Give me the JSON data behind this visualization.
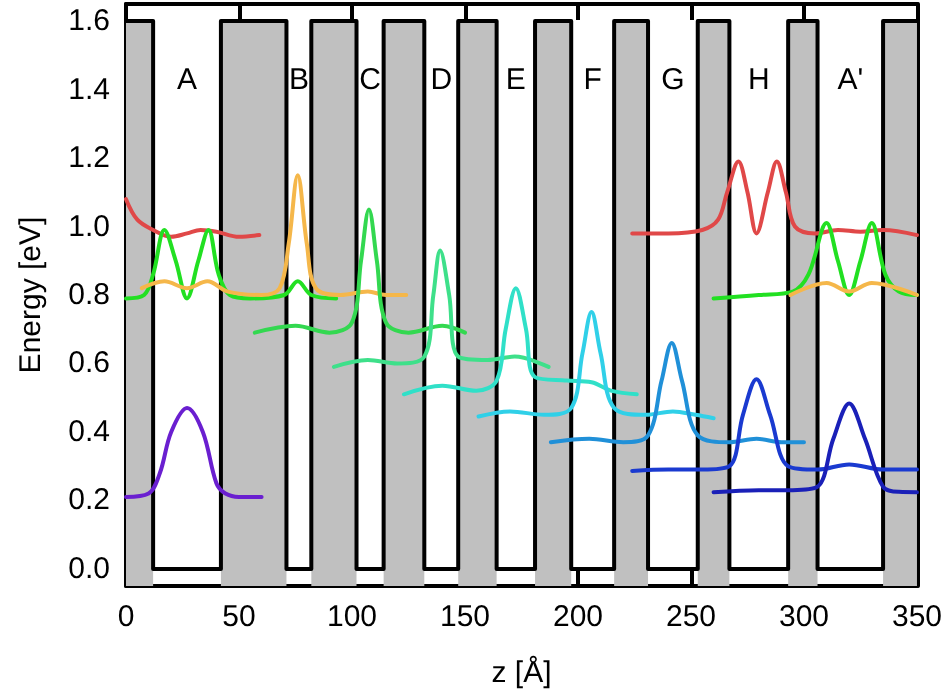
{
  "chart_data": {
    "type": "line",
    "xlabel": "z [Å]",
    "ylabel": "Energy [eV]",
    "xlim": [
      0,
      350
    ],
    "xticks": [
      0,
      50,
      100,
      150,
      200,
      250,
      300,
      350
    ],
    "ylim": [
      -0.05,
      1.65
    ],
    "yticks": [
      {
        "value": 0,
        "label": "0.0"
      },
      0.2,
      0.4,
      0.6,
      0.8,
      {
        "value": 1,
        "label": "1.0"
      },
      1.2,
      1.4,
      1.6
    ],
    "grid": false,
    "marker": "none",
    "line_style": "solid",
    "bands": [
      {
        "axis": "x",
        "from": 0,
        "to": 12,
        "color": "#c0c0c0"
      },
      {
        "axis": "x",
        "from": 42,
        "to": 71,
        "color": "#c0c0c0"
      },
      {
        "axis": "x",
        "from": 82,
        "to": 102,
        "color": "#c0c0c0"
      },
      {
        "axis": "x",
        "from": 114,
        "to": 132,
        "color": "#c0c0c0"
      },
      {
        "axis": "x",
        "from": 147,
        "to": 164,
        "color": "#c0c0c0"
      },
      {
        "axis": "x",
        "from": 181,
        "to": 197,
        "color": "#c0c0c0"
      },
      {
        "axis": "x",
        "from": 216,
        "to": 231,
        "color": "#c0c0c0"
      },
      {
        "axis": "x",
        "from": 253,
        "to": 267,
        "color": "#c0c0c0"
      },
      {
        "axis": "x",
        "from": 293,
        "to": 306,
        "color": "#c0c0c0"
      },
      {
        "axis": "x",
        "from": 335,
        "to": 350,
        "color": "#c0c0c0"
      }
    ],
    "annotations": [
      "A",
      "B",
      "C",
      "D",
      "E",
      "F",
      "G",
      "H",
      "A'"
    ],
    "series": [
      {
        "color": "#000000",
        "x": [
          0,
          12,
          12,
          42,
          42,
          71,
          71,
          82,
          82,
          102,
          102,
          114,
          114,
          132,
          132,
          147,
          147,
          164,
          164,
          181,
          181,
          197,
          197,
          216,
          216,
          231,
          231,
          253,
          253,
          267,
          267,
          293,
          293,
          306,
          306,
          335,
          335,
          350
        ],
        "values": [
          1.6,
          1.6,
          0,
          0,
          1.6,
          1.6,
          0,
          0,
          1.6,
          1.6,
          0,
          0,
          1.6,
          1.6,
          0,
          0,
          1.6,
          1.6,
          0,
          0,
          1.6,
          1.6,
          0,
          0,
          1.6,
          1.6,
          0,
          0,
          1.6,
          1.6,
          0,
          0,
          1.6,
          1.6,
          0,
          0,
          1.6,
          1.6
        ]
      },
      {
        "color": "#6a1fd0",
        "x": [
          0,
          10,
          15,
          20,
          27,
          34,
          40,
          44,
          50,
          60
        ],
        "values": [
          0.21,
          0.22,
          0.28,
          0.4,
          0.47,
          0.4,
          0.25,
          0.22,
          0.21,
          0.21
        ]
      },
      {
        "color": "#e04848",
        "x": [
          0,
          5,
          12,
          20,
          27,
          33,
          40,
          50,
          59
        ],
        "values": [
          1.08,
          1.02,
          0.99,
          0.97,
          0.98,
          0.99,
          0.985,
          0.97,
          0.975
        ]
      },
      {
        "color": "#e04848",
        "x": [
          224,
          240,
          255,
          262,
          266,
          271,
          275,
          279,
          284,
          288,
          292,
          296,
          305,
          315,
          325,
          335,
          350
        ],
        "values": [
          0.98,
          0.98,
          0.99,
          1.02,
          1.1,
          1.19,
          1.1,
          0.98,
          1.1,
          1.19,
          1.1,
          1,
          0.98,
          0.99,
          0.985,
          0.99,
          0.975
        ]
      },
      {
        "color": "#22e022",
        "x": [
          0,
          8,
          12,
          17,
          22,
          27,
          32,
          36.5,
          41,
          46,
          55,
          70,
          76,
          82,
          93
        ],
        "values": [
          0.79,
          0.8,
          0.86,
          0.99,
          0.9,
          0.79,
          0.9,
          0.99,
          0.86,
          0.8,
          0.79,
          0.8,
          0.84,
          0.8,
          0.79
        ]
      },
      {
        "color": "#22e022",
        "x": [
          260,
          280,
          295,
          302,
          310,
          315,
          320,
          325,
          330,
          336,
          342,
          350
        ],
        "values": [
          0.79,
          0.8,
          0.81,
          0.86,
          1.01,
          0.9,
          0.8,
          0.9,
          1.01,
          0.86,
          0.81,
          0.8
        ]
      },
      {
        "color": "#f5b74a",
        "x": [
          7,
          17,
          27,
          36,
          45,
          60,
          68,
          72,
          76,
          80,
          84,
          95,
          107,
          115,
          124
        ],
        "values": [
          0.82,
          0.84,
          0.82,
          0.84,
          0.81,
          0.8,
          0.82,
          0.95,
          1.15,
          0.95,
          0.82,
          0.8,
          0.81,
          0.8,
          0.8
        ]
      },
      {
        "color": "#f5b74a",
        "x": [
          294,
          310,
          320,
          330,
          350
        ],
        "values": [
          0.8,
          0.835,
          0.81,
          0.835,
          0.8
        ]
      },
      {
        "color": "#33d850",
        "x": [
          57,
          75,
          90,
          100,
          104,
          107.5,
          111,
          115,
          125,
          140,
          150
        ],
        "values": [
          0.69,
          0.71,
          0.69,
          0.72,
          0.9,
          1.05,
          0.9,
          0.72,
          0.69,
          0.71,
          0.69
        ]
      },
      {
        "color": "#3ee08a",
        "x": [
          92,
          107,
          120,
          132,
          136,
          139,
          143,
          147,
          160,
          172,
          187
        ],
        "values": [
          0.59,
          0.61,
          0.6,
          0.62,
          0.8,
          0.93,
          0.8,
          0.62,
          0.61,
          0.62,
          0.59
        ]
      },
      {
        "color": "#30e0c8",
        "x": [
          123,
          140,
          155,
          164,
          168,
          172.5,
          177,
          181,
          195,
          206,
          215,
          226
        ],
        "values": [
          0.51,
          0.535,
          0.52,
          0.55,
          0.7,
          0.82,
          0.7,
          0.56,
          0.55,
          0.545,
          0.52,
          0.51
        ]
      },
      {
        "color": "#30d0e8",
        "x": [
          156,
          170,
          185,
          197,
          202,
          206,
          210,
          216,
          230,
          242,
          252,
          260
        ],
        "values": [
          0.445,
          0.46,
          0.45,
          0.47,
          0.63,
          0.75,
          0.63,
          0.47,
          0.45,
          0.46,
          0.45,
          0.44
        ]
      },
      {
        "color": "#2090d8",
        "x": [
          188,
          205,
          220,
          231,
          237,
          241.5,
          246,
          253,
          267,
          279,
          290,
          300
        ],
        "values": [
          0.37,
          0.38,
          0.37,
          0.39,
          0.55,
          0.66,
          0.55,
          0.39,
          0.37,
          0.38,
          0.37,
          0.37
        ]
      },
      {
        "color": "#1a3ad0",
        "x": [
          224,
          240,
          255,
          267,
          273,
          279,
          285,
          293,
          306,
          320,
          335,
          350
        ],
        "values": [
          0.286,
          0.29,
          0.29,
          0.3,
          0.45,
          0.554,
          0.45,
          0.3,
          0.29,
          0.305,
          0.29,
          0.29
        ]
      },
      {
        "color": "#1a20b8",
        "x": [
          260,
          280,
          295,
          306,
          313,
          320,
          327,
          335,
          342,
          350
        ],
        "values": [
          0.224,
          0.23,
          0.23,
          0.24,
          0.38,
          0.483,
          0.38,
          0.24,
          0.225,
          0.224
        ]
      }
    ]
  }
}
